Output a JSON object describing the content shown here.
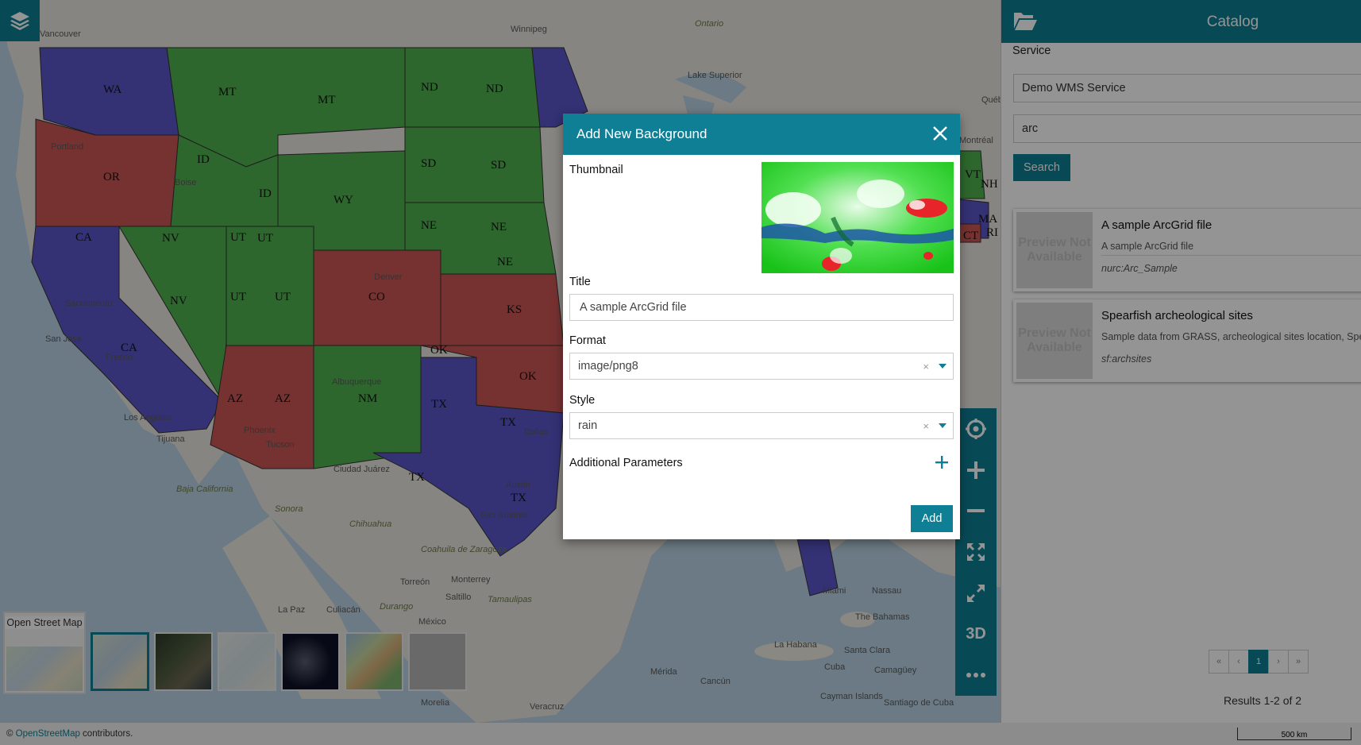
{
  "map": {
    "state_labels": [
      "WA",
      "MT",
      "MT",
      "ND",
      "ND",
      "OR",
      "ID",
      "ID",
      "WY",
      "SD",
      "SD",
      "CA",
      "NV",
      "UT",
      "UT",
      "NE",
      "NE",
      "NE",
      "NV",
      "UT",
      "UT",
      "CO",
      "KS",
      "CA",
      "OK",
      "OK",
      "AZ",
      "AZ",
      "NM",
      "TX",
      "TX",
      "TX",
      "TX",
      "VT",
      "NH",
      "MA",
      "CT",
      "RI"
    ],
    "place_labels": [
      "Vancouver",
      "Winnipeg",
      "Ontario",
      "Portland",
      "Boise",
      "Sacramento",
      "San Jose",
      "Fresno",
      "Los Angeles",
      "Tijuana",
      "Phoenix",
      "Tucson",
      "Denver",
      "Albuquerque",
      "Dallas",
      "Austin",
      "San Antonio",
      "Ciudad Juárez",
      "Chihuahua",
      "Sonora",
      "Baja California",
      "Coahuila de Zaragoza",
      "Torreón",
      "Monterrey",
      "Saltillo",
      "La Paz",
      "Culiacán",
      "Durango",
      "Tamaulipas",
      "México",
      "Morelia",
      "Veracruz",
      "Mérida",
      "Cancún",
      "Miami",
      "Nassau",
      "The Bahamas",
      "La Habana",
      "Cuba",
      "Santa Clara",
      "Camagüey",
      "Cayman Islands",
      "Santiago de Cuba",
      "Lake Superior",
      "Montréal",
      "Québec"
    ],
    "current_background": "Open Street Map",
    "background_thumbs": [
      "osm-thumb",
      "satellite-thumb",
      "light-thumb",
      "night-thumb",
      "terrain-thumb",
      "empty-thumb"
    ],
    "selected_thumb_index": 0,
    "toolbar": [
      "locate",
      "zoom-in",
      "zoom-out",
      "full-extent",
      "fullscreen",
      "3D",
      "more"
    ],
    "toolbar_3d_label": "3D",
    "attribution_prefix": "© ",
    "attribution_link": "OpenStreetMap",
    "attribution_suffix": " contributors.",
    "scale_label": "500 km"
  },
  "catalog": {
    "title": "Catalog",
    "service_label": "Service",
    "service_value": "Demo WMS Service",
    "search_value": "arc",
    "search_button": "Search",
    "records": [
      {
        "preview": "Preview Not Available",
        "title": "A sample ArcGrid file",
        "description": "A sample ArcGrid file",
        "name": "nurc:Arc_Sample"
      },
      {
        "preview": "Preview Not Available",
        "title": "Spearfish archeological sites",
        "description": "Sample data from GRASS, archeological sites location, Spea",
        "name": "sf:archsites"
      }
    ],
    "pager": [
      "«",
      "‹",
      "1",
      "›",
      "»"
    ],
    "results_text": "Results 1-2 of 2"
  },
  "dialog": {
    "title": "Add New Background",
    "thumbnail_label": "Thumbnail",
    "title_label": "Title",
    "title_value": "A sample ArcGrid file",
    "format_label": "Format",
    "format_value": "image/png8",
    "style_label": "Style",
    "style_value": "rain",
    "additional_params_label": "Additional Parameters",
    "add_button": "Add",
    "clear_symbol": "×"
  },
  "colors": {
    "accent": "#0f7f95",
    "state_green": "#4fb24f",
    "state_blue": "#5a55c8",
    "state_red": "#cc5555"
  }
}
